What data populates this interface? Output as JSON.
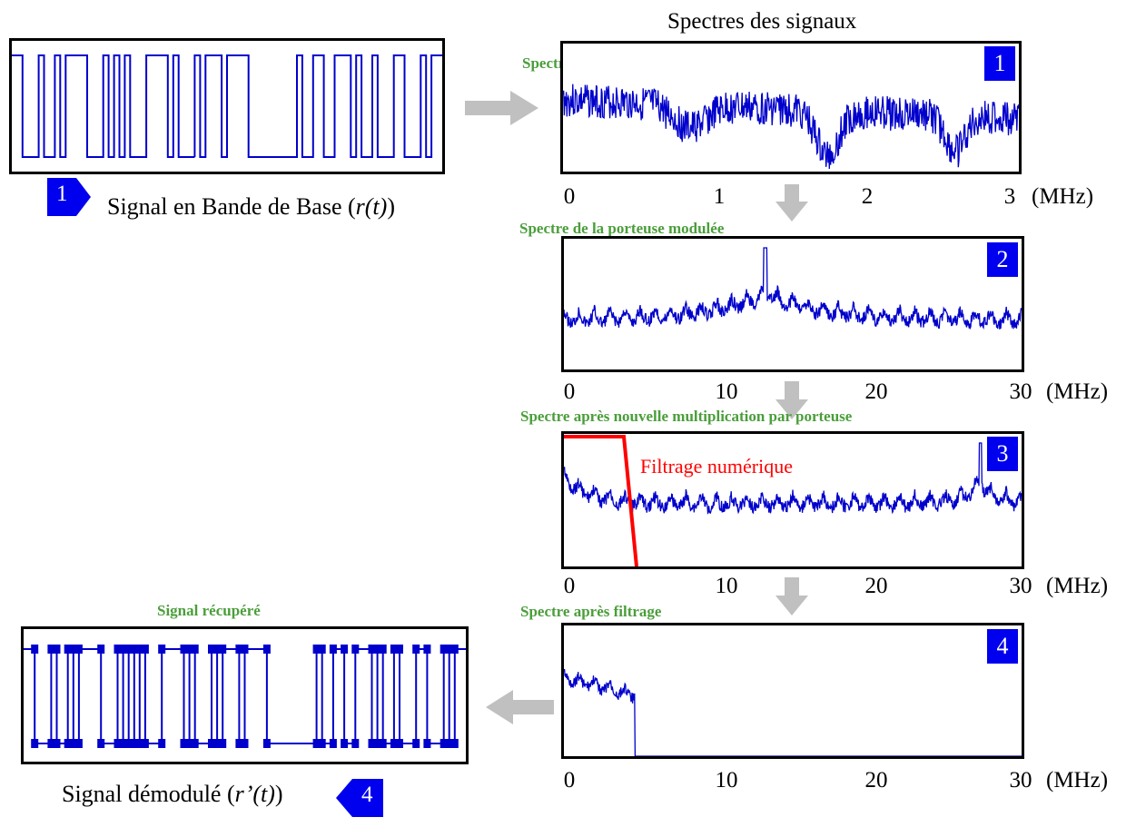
{
  "header": {
    "title": "Spectres des signaux"
  },
  "baseband": {
    "badge": "1",
    "caption_prefix": "Signal en Bande de Base (",
    "caption_var": "r(t)",
    "caption_suffix": ")"
  },
  "demod": {
    "heading": "Signal récupéré",
    "badge": "4",
    "caption_prefix": "Signal démodulé (",
    "caption_var": "r’(t)",
    "caption_suffix": ")"
  },
  "spectra": [
    {
      "badge": "1",
      "heading": "Spectre du signal Bande de Base",
      "ticks": [
        "0",
        "1",
        "2",
        "3"
      ],
      "unit": "(MHz)"
    },
    {
      "badge": "2",
      "heading": "Spectre de la porteuse modulée",
      "ticks": [
        "0",
        "10",
        "20",
        "30"
      ],
      "unit": "(MHz)"
    },
    {
      "badge": "3",
      "heading": "Spectre après nouvelle multiplication par porteuse",
      "ticks": [
        "0",
        "10",
        "20",
        "30"
      ],
      "unit": "(MHz)",
      "filter_label": "Filtrage numérique"
    },
    {
      "badge": "4",
      "heading": "Spectre après filtrage",
      "ticks": [
        "0",
        "10",
        "20",
        "30"
      ],
      "unit": "(MHz)"
    }
  ],
  "colors": {
    "signal": "#0000cc",
    "badge": "#0000ee",
    "heading": "#4a9e3a",
    "filter": "#ff0000",
    "arrow": "#c0c0c0"
  }
}
